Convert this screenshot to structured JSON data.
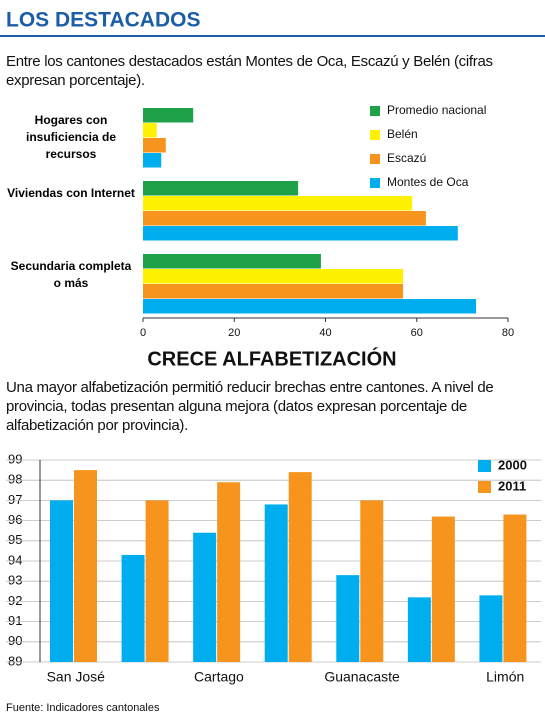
{
  "header": {
    "title": "LOS DESTACADOS",
    "subtitle": "Entre los cantones destacados están Montes de Oca, Escazú y Belén (cifras expresan porcentaje)."
  },
  "chart_data": [
    {
      "type": "hbar",
      "categories": [
        "Hogares con insuficiencia de recursos",
        "Viviendas con Internet",
        "Secundaria completa o más"
      ],
      "series": [
        {
          "name": "Promedio nacional",
          "color": "#1fa14a",
          "values": [
            11,
            34,
            39
          ]
        },
        {
          "name": "Belén",
          "color": "#fff200",
          "values": [
            3,
            59,
            57
          ]
        },
        {
          "name": "Escazú",
          "color": "#f7941d",
          "values": [
            5,
            62,
            57
          ]
        },
        {
          "name": "Montes de Oca",
          "color": "#00aeef",
          "values": [
            4,
            69,
            73
          ]
        }
      ],
      "xlim": [
        0,
        80
      ],
      "xticks": [
        0,
        20,
        40,
        60,
        80
      ],
      "grid": false,
      "legend": "upper right"
    },
    {
      "type": "bar",
      "title": "CRECE ALFABETIZACIÓN",
      "subtitle": "Una mayor alfabetización permitió reducir brechas entre cantones. A nivel de provincia, todas presentan alguna mejora (datos expresan porcentaje de alfabetización por provincia).",
      "categories": [
        "San José",
        null,
        "Cartago",
        null,
        "Guanacaste",
        null,
        "Limón"
      ],
      "series": [
        {
          "name": "2000",
          "color": "#00aeef",
          "values": [
            97.0,
            94.3,
            95.4,
            96.8,
            93.3,
            92.2,
            92.3
          ]
        },
        {
          "name": "2011",
          "color": "#f7941d",
          "values": [
            98.5,
            97.0,
            97.9,
            98.4,
            97.0,
            96.2,
            96.3
          ]
        }
      ],
      "ylim": [
        89,
        99
      ],
      "yticks": [
        89,
        90,
        91,
        92,
        93,
        94,
        95,
        96,
        97,
        98,
        99
      ],
      "grid": true,
      "legend": "upper right"
    }
  ],
  "source": "Fuente: Indicadores cantonales"
}
